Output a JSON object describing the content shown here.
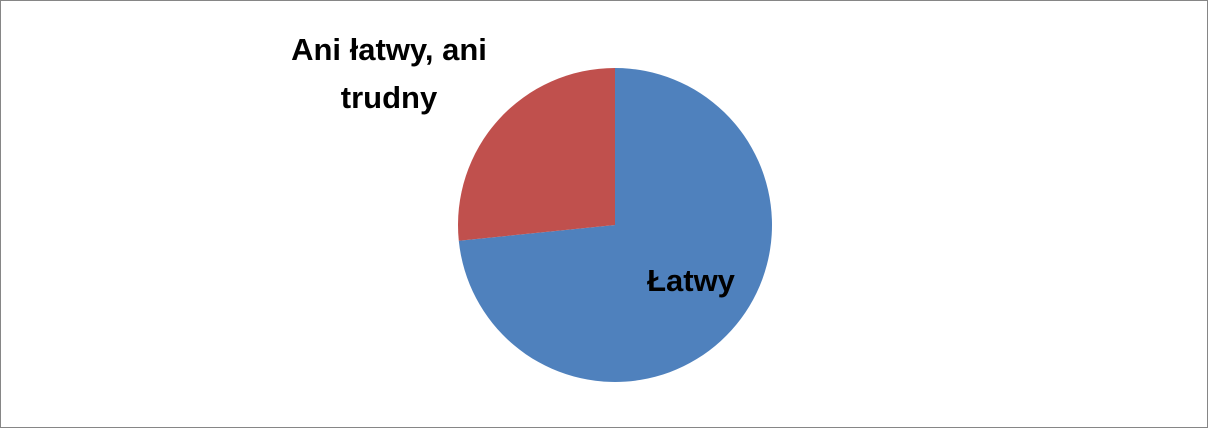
{
  "chart_data": {
    "type": "pie",
    "title": "",
    "slices": [
      {
        "label": "Łatwy",
        "value": 73.4,
        "color": "#4F81BD"
      },
      {
        "label": "Ani łatwy, ani trudny",
        "value": 26.6,
        "color": "#C0504D"
      }
    ],
    "labels": {
      "latwy": "Łatwy",
      "neutral_line1": "Ani łatwy, ani",
      "neutral_line2": "trudny"
    },
    "legend": "none",
    "start_angle": "12 o'clock",
    "direction": "clockwise"
  }
}
